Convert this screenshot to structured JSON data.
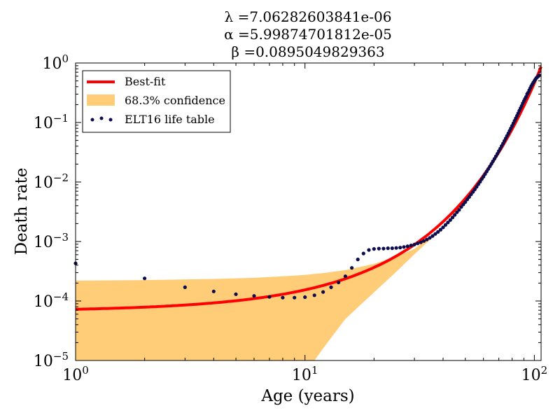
{
  "chart_data": {
    "type": "line",
    "title_lines": [
      "λ =7.06282603841e-06",
      "α =5.99874701812e-05",
      "β =0.0895049829363"
    ],
    "xlabel": "Age (years)",
    "ylabel": "Death rate",
    "x_scale": "log",
    "y_scale": "log",
    "xlim": [
      1,
      107
    ],
    "ylim": [
      1e-05,
      1
    ],
    "x_ticks": [
      {
        "value": 1,
        "base": "10",
        "exp": "0"
      },
      {
        "value": 10,
        "base": "10",
        "exp": "1"
      },
      {
        "value": 100,
        "base": "10",
        "exp": "2"
      }
    ],
    "y_ticks": [
      {
        "value": 1,
        "base": "10",
        "exp": "0"
      },
      {
        "value": 0.1,
        "base": "10",
        "exp": "−1"
      },
      {
        "value": 0.01,
        "base": "10",
        "exp": "−2"
      },
      {
        "value": 0.001,
        "base": "10",
        "exp": "−3"
      },
      {
        "value": 0.0001,
        "base": "10",
        "exp": "−4"
      },
      {
        "value": 1e-05,
        "base": "10",
        "exp": "−5"
      }
    ],
    "grid": false,
    "legend_position": "top-left",
    "series": [
      {
        "name": "Best-fit",
        "kind": "line",
        "color": "#ff0000",
        "lambda": 7.06282603841e-06,
        "alpha": 5.99874701812e-05,
        "beta": 0.0895049829363
      },
      {
        "name": "68.3% confidence",
        "kind": "band",
        "color": "#ffcc77",
        "x": [
          1,
          2,
          4,
          6,
          8,
          10,
          11,
          12,
          15,
          20,
          25,
          30,
          40,
          60,
          80,
          107
        ],
        "lower": [
          1e-05,
          1e-05,
          1e-05,
          1e-05,
          1e-05,
          1e-05,
          1e-05,
          1.6e-05,
          5e-05,
          0.00014,
          0.00031,
          0.00061,
          0.0017,
          0.0114,
          0.072,
          0.64
        ],
        "upper": [
          0.00022,
          0.000225,
          0.000235,
          0.000245,
          0.00026,
          0.000275,
          0.000285,
          0.000295,
          0.00033,
          0.00042,
          0.00056,
          0.00075,
          0.0018,
          0.0118,
          0.075,
          0.66
        ]
      },
      {
        "name": "ELT16 life table",
        "kind": "scatter",
        "color": "#0d0d4d",
        "x": [
          1,
          2,
          3,
          4,
          5,
          6,
          7,
          8,
          9,
          10,
          11,
          12,
          13,
          14,
          15,
          16,
          17,
          18,
          19,
          20,
          21,
          22,
          23,
          24,
          25,
          26,
          27,
          28,
          29,
          30,
          31,
          32,
          33,
          34,
          35,
          36,
          37,
          38,
          39,
          40,
          41,
          42,
          43,
          44,
          45,
          46,
          47,
          48,
          49,
          50,
          51,
          52,
          53,
          54,
          55,
          56,
          57,
          58,
          59,
          60,
          61,
          62,
          63,
          64,
          65,
          66,
          67,
          68,
          69,
          70,
          71,
          72,
          73,
          74,
          75,
          76,
          77,
          78,
          79,
          80,
          81,
          82,
          83,
          84,
          85,
          86,
          87,
          88,
          89,
          90,
          91,
          92,
          93,
          94,
          95,
          96,
          97,
          98,
          99,
          100,
          101,
          102,
          103,
          104,
          105
        ],
        "y": [
          0.00043,
          0.00024,
          0.00017,
          0.000145,
          0.00013,
          0.000122,
          0.000117,
          0.000114,
          0.000114,
          0.000116,
          0.000125,
          0.000142,
          0.00017,
          0.000205,
          0.00026,
          0.00036,
          0.0005,
          0.00063,
          0.00072,
          0.00075,
          0.00076,
          0.00076,
          0.00077,
          0.00077,
          0.00078,
          0.00079,
          0.00081,
          0.00083,
          0.00086,
          0.00089,
          0.00093,
          0.00097,
          0.00102,
          0.00108,
          0.00115,
          0.00124,
          0.00134,
          0.00145,
          0.00158,
          0.00173,
          0.0019,
          0.00209,
          0.0023,
          0.00253,
          0.0028,
          0.0031,
          0.0034,
          0.0038,
          0.0042,
          0.0046,
          0.0051,
          0.0056,
          0.0062,
          0.0068,
          0.0075,
          0.0083,
          0.0092,
          0.0101,
          0.0112,
          0.0123,
          0.0136,
          0.015,
          0.0166,
          0.0183,
          0.0202,
          0.0223,
          0.0246,
          0.0271,
          0.0299,
          0.033,
          0.0364,
          0.0402,
          0.0444,
          0.049,
          0.054,
          0.0596,
          0.0657,
          0.0724,
          0.0798,
          0.088,
          0.097,
          0.107,
          0.118,
          0.13,
          0.143,
          0.158,
          0.174,
          0.19,
          0.21,
          0.23,
          0.25,
          0.27,
          0.3,
          0.32,
          0.35,
          0.38,
          0.41,
          0.44,
          0.47,
          0.5,
          0.53,
          0.56,
          0.58,
          0.6,
          0.62
        ]
      }
    ]
  }
}
